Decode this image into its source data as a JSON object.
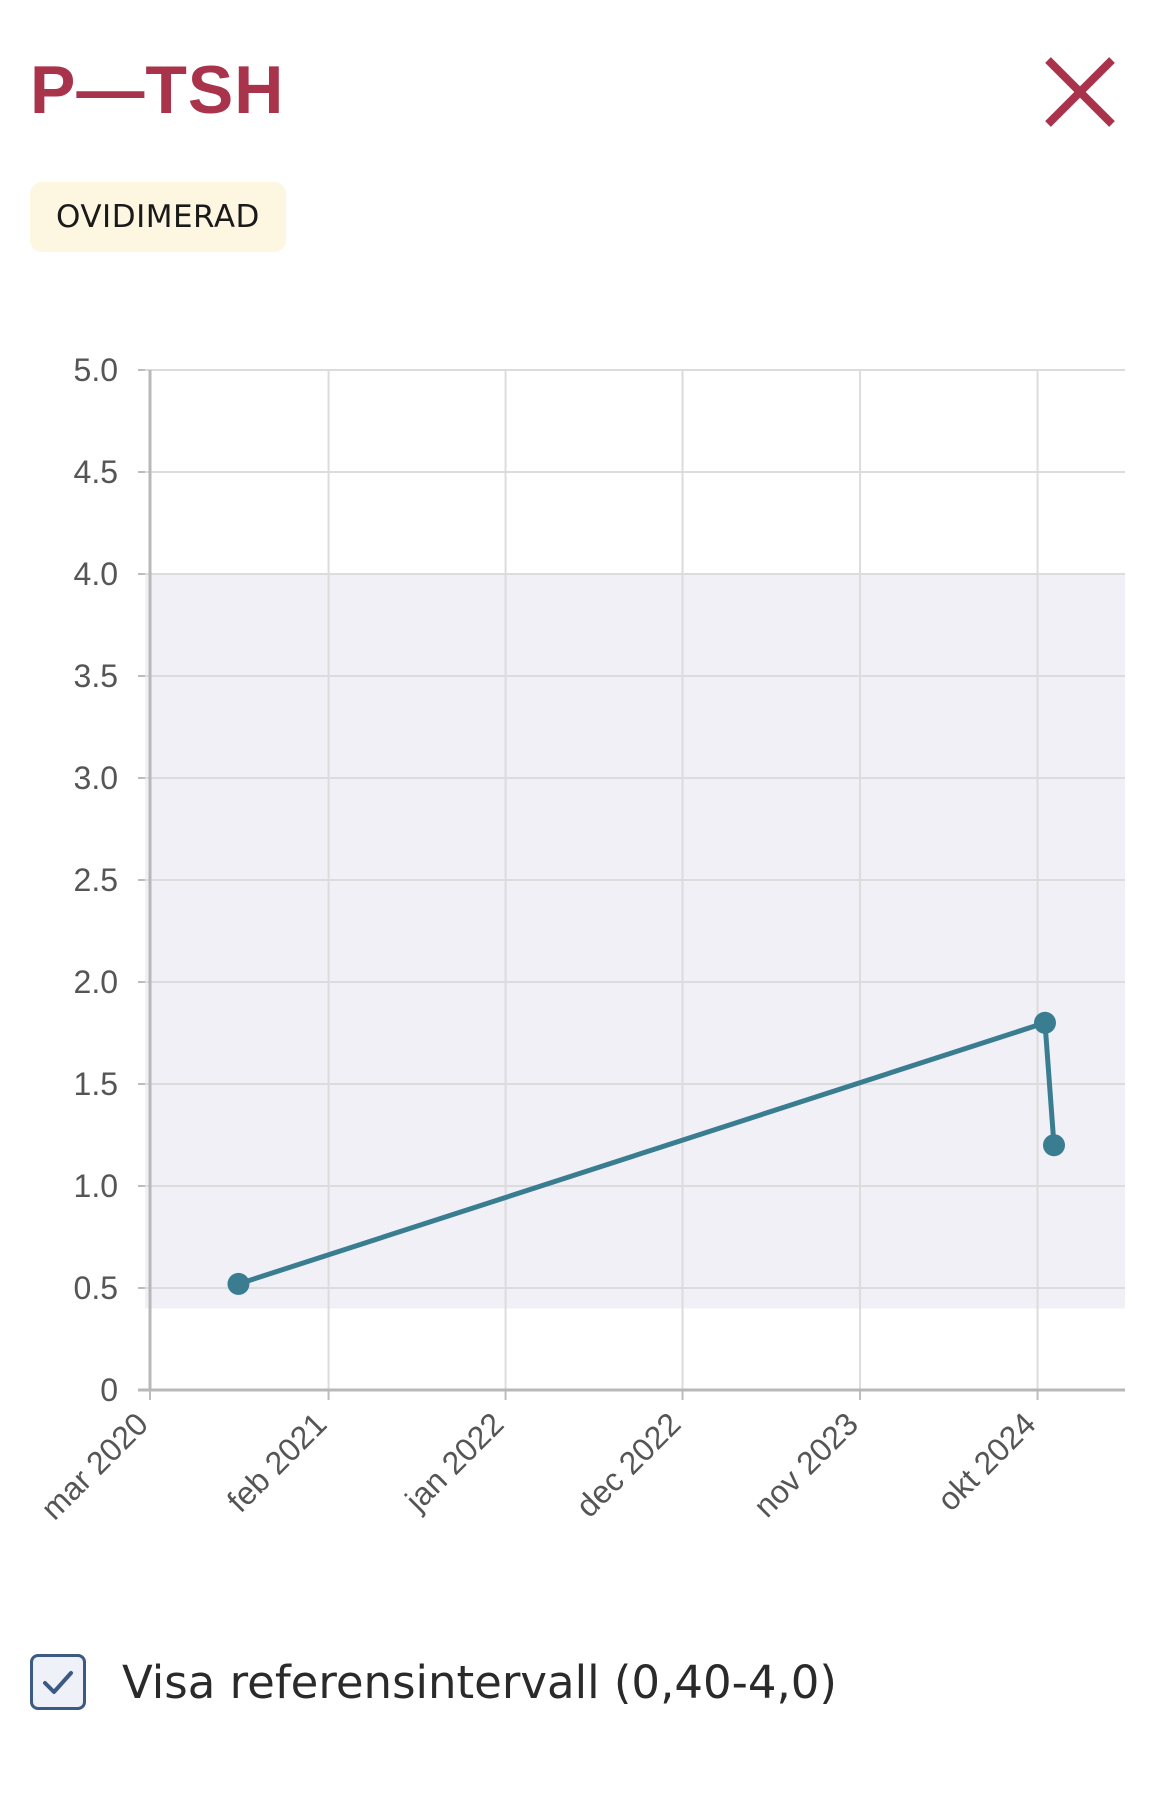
{
  "header": {
    "title": "P—TSH",
    "close_icon": "close-x-icon"
  },
  "status_badge": "OVIDIMERAD",
  "reference_toggle": {
    "label": "Visa referensintervall (0,40-4,0)",
    "checked": true,
    "check_icon": "checkmark-icon"
  },
  "colors": {
    "title": "#a8334b",
    "line": "#3a7d91",
    "reference_band": "#f0f0f6",
    "badge_bg": "#fdf6e0"
  },
  "chart_data": {
    "type": "line",
    "title": "",
    "xlabel": "",
    "ylabel": "",
    "ylim": [
      0,
      5.0
    ],
    "xlim": [
      "2020-03-01",
      "2025-03-15"
    ],
    "y_ticks": [
      0,
      0.5,
      1.0,
      1.5,
      2.0,
      2.5,
      3.0,
      3.5,
      4.0,
      4.5,
      5.0
    ],
    "y_tick_labels": [
      "0",
      "0.5",
      "1.0",
      "1.5",
      "2.0",
      "2.5",
      "3.0",
      "3.5",
      "4.0",
      "4.5",
      "5.0"
    ],
    "x_ticks": [
      "2020-03-01",
      "2021-02-01",
      "2022-01-01",
      "2022-12-01",
      "2023-11-01",
      "2024-10-01"
    ],
    "x_tick_labels": [
      "mar 2020",
      "feb 2021",
      "jan 2022",
      "dec 2022",
      "nov 2023",
      "okt 2024"
    ],
    "reference_range": [
      0.4,
      4.0
    ],
    "grid": true,
    "series": [
      {
        "points": [
          {
            "x": "2020-08-15",
            "y": 0.52
          },
          {
            "x": "2024-10-15",
            "y": 1.8
          },
          {
            "x": "2024-11-01",
            "y": 1.2
          }
        ]
      }
    ]
  }
}
